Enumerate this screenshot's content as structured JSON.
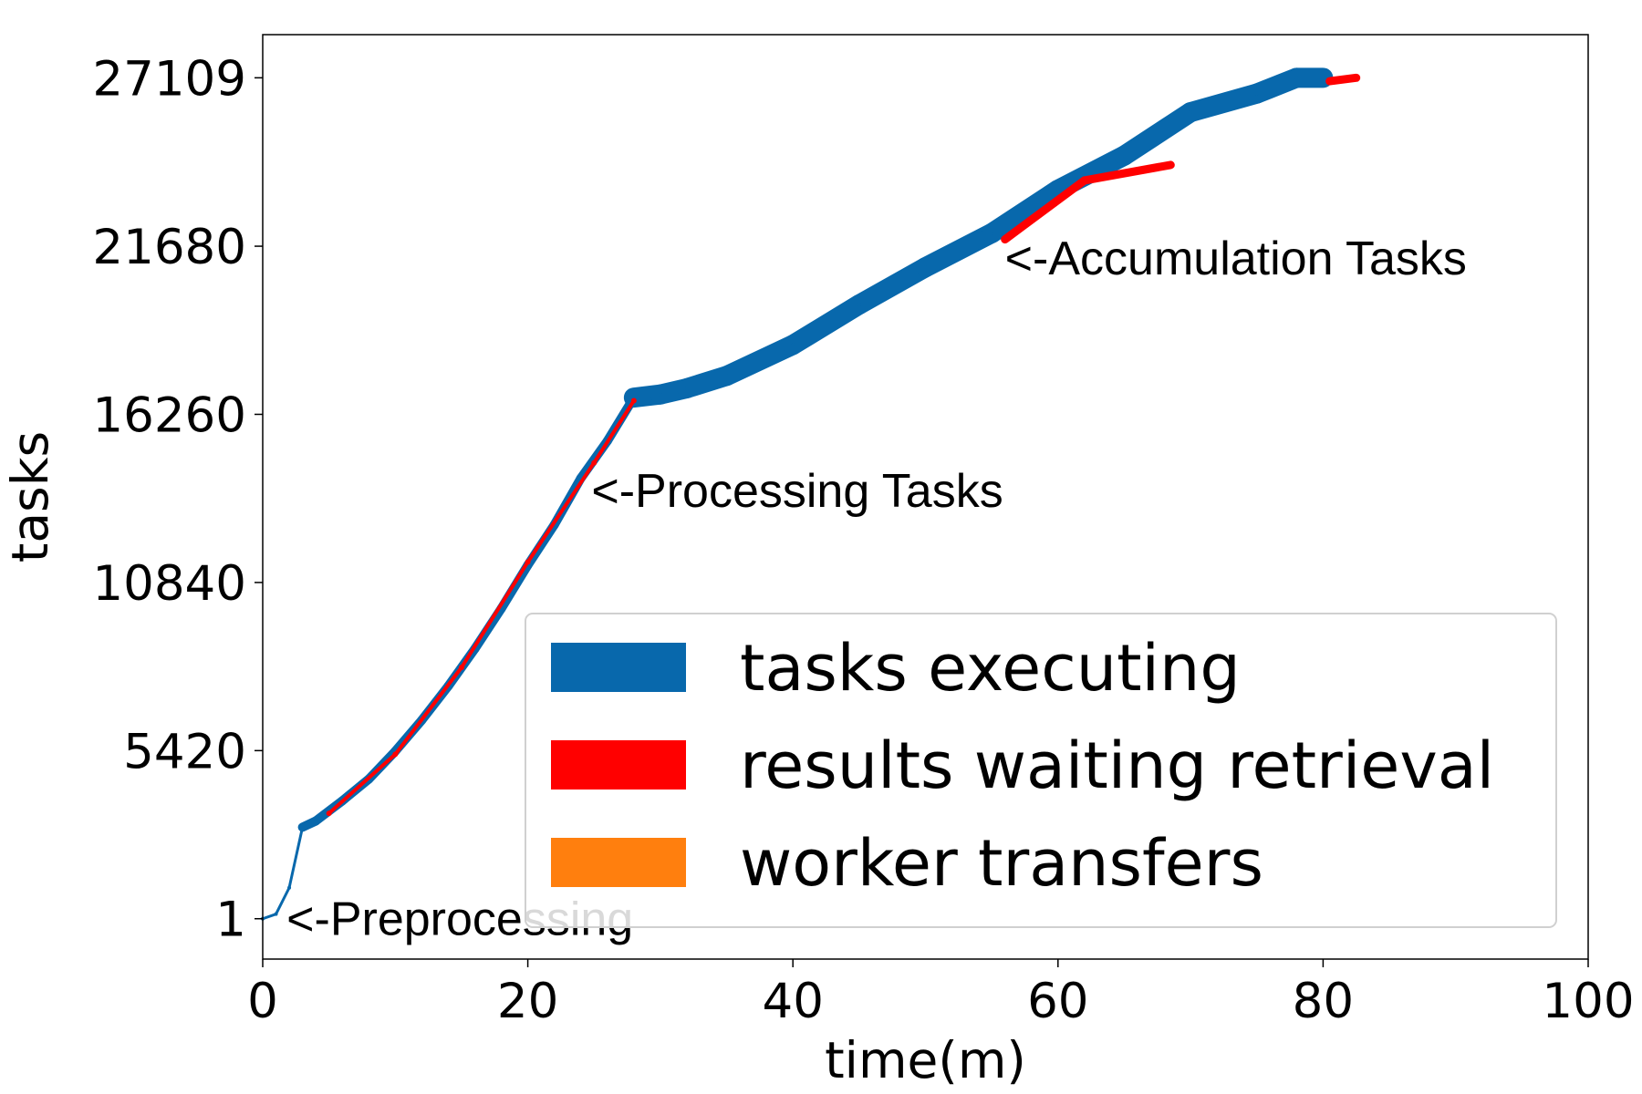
{
  "chart_data": {
    "type": "line",
    "title": "",
    "xlabel": "time(m)",
    "ylabel": "tasks",
    "xlim": [
      0,
      100
    ],
    "ylim": [
      -1300,
      28500
    ],
    "x_ticks": [
      0,
      20,
      40,
      60,
      80,
      100
    ],
    "y_ticks": [
      1,
      5420,
      10840,
      16260,
      21680,
      27109
    ],
    "grid": false,
    "legend_position": "lower-right",
    "series": [
      {
        "name": "tasks executing",
        "color": "#0868ac",
        "points": [
          [
            0,
            1
          ],
          [
            1,
            150
          ],
          [
            2,
            1000
          ],
          [
            3,
            2950
          ],
          [
            4,
            3150
          ],
          [
            6,
            3800
          ],
          [
            8,
            4500
          ],
          [
            10,
            5400
          ],
          [
            12,
            6400
          ],
          [
            14,
            7500
          ],
          [
            16,
            8700
          ],
          [
            18,
            10000
          ],
          [
            20,
            11400
          ],
          [
            22,
            12700
          ],
          [
            24,
            14200
          ],
          [
            26,
            15400
          ],
          [
            28,
            16800
          ],
          [
            30,
            16900
          ],
          [
            32,
            17100
          ],
          [
            35,
            17500
          ],
          [
            40,
            18500
          ],
          [
            45,
            19800
          ],
          [
            50,
            21000
          ],
          [
            55,
            22100
          ],
          [
            60,
            23500
          ],
          [
            65,
            24600
          ],
          [
            70,
            26000
          ],
          [
            75,
            26600
          ],
          [
            78,
            27109
          ],
          [
            80,
            27109
          ]
        ]
      },
      {
        "name": "results waiting retrieval",
        "color": "#ff0000",
        "points": [
          [
            5,
            3400
          ],
          [
            10,
            5300
          ],
          [
            15,
            8100
          ],
          [
            20,
            11500
          ],
          [
            25,
            14700
          ],
          [
            28,
            16700
          ],
          [
            56,
            21900
          ],
          [
            62,
            23800
          ],
          [
            68.5,
            24300
          ],
          [
            80.5,
            27000
          ],
          [
            82.5,
            27109
          ]
        ]
      },
      {
        "name": "worker transfers",
        "color": "#ff7f0e",
        "points": []
      }
    ],
    "annotations": [
      {
        "text": "<-Preprocessing",
        "x": 1.8,
        "y": 1
      },
      {
        "text": "<-Processing Tasks",
        "x": 24.8,
        "y": 13800
      },
      {
        "text": "<-Accumulation Tasks",
        "x": 56,
        "y": 21300
      }
    ]
  }
}
